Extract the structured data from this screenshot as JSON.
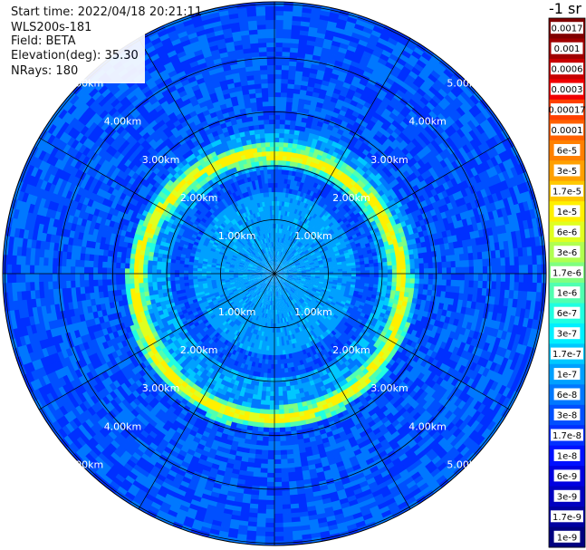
{
  "info": {
    "start_time": "Start time: 2022/04/18 20:21:11",
    "instrument": "WLS200s-181",
    "field": "Field: BETA",
    "elevation": "Elevation(deg): 35.30",
    "nrays": "NRays: 180"
  },
  "colorbar": {
    "title": "-1 sr",
    "labels": [
      "0.0017",
      "0.001",
      "0.0006",
      "0.0003",
      "0.00017",
      "0.0001",
      "6e-5",
      "3e-5",
      "1.7e-5",
      "1e-5",
      "6e-6",
      "3e-6",
      "1.7e-6",
      "1e-6",
      "6e-7",
      "3e-7",
      "1.7e-7",
      "1e-7",
      "6e-8",
      "3e-8",
      "1.7e-8",
      "1e-8",
      "6e-9",
      "3e-9",
      "1.7e-9",
      "1e-9"
    ],
    "colors": [
      "#800000",
      "#a00000",
      "#c80000",
      "#f00000",
      "#ff4000",
      "#ff6000",
      "#ff8000",
      "#ffa000",
      "#ffc800",
      "#fff000",
      "#e0ff20",
      "#b0ff50",
      "#80ff80",
      "#50ffb0",
      "#20ffe0",
      "#00f0ff",
      "#00c8ff",
      "#00a0ff",
      "#0078ff",
      "#0050ff",
      "#0030ff",
      "#0010ff",
      "#0000e0",
      "#0000c0",
      "#0000a0",
      "#000080"
    ]
  },
  "chart_data": {
    "type": "polar-ppi",
    "field": "BETA",
    "units": "-1 sr",
    "range_rings_km": [
      1.0,
      2.0,
      3.0,
      4.0,
      5.0
    ],
    "ring_labels": [
      "1.00km",
      "2.00km",
      "3.00km",
      "4.00km",
      "5.00km"
    ],
    "n_rays": 180,
    "elevation_deg": 35.3,
    "spokes_deg": [
      0,
      30,
      60,
      90,
      120,
      150,
      180,
      210,
      240,
      270,
      300,
      330
    ],
    "colorbar_levels": [
      "0.0017",
      "0.001",
      "0.0006",
      "0.0003",
      "0.00017",
      "0.0001",
      "6e-5",
      "3e-5",
      "1.7e-5",
      "1e-5",
      "6e-6",
      "3e-6",
      "1.7e-6",
      "1e-6",
      "6e-7",
      "3e-7",
      "1.7e-7",
      "1e-7",
      "6e-8",
      "3e-8",
      "1.7e-8",
      "1e-8",
      "6e-9",
      "3e-9",
      "1.7e-9",
      "1e-9"
    ],
    "dominant_levels": {
      "inner_0_to_1.5km": "1e-7",
      "band_1.5_to_2.0km": "3e-8",
      "ring_peak_near_2.4km": "1e-5",
      "outer_2.7_to_5km": "3e-8"
    }
  }
}
